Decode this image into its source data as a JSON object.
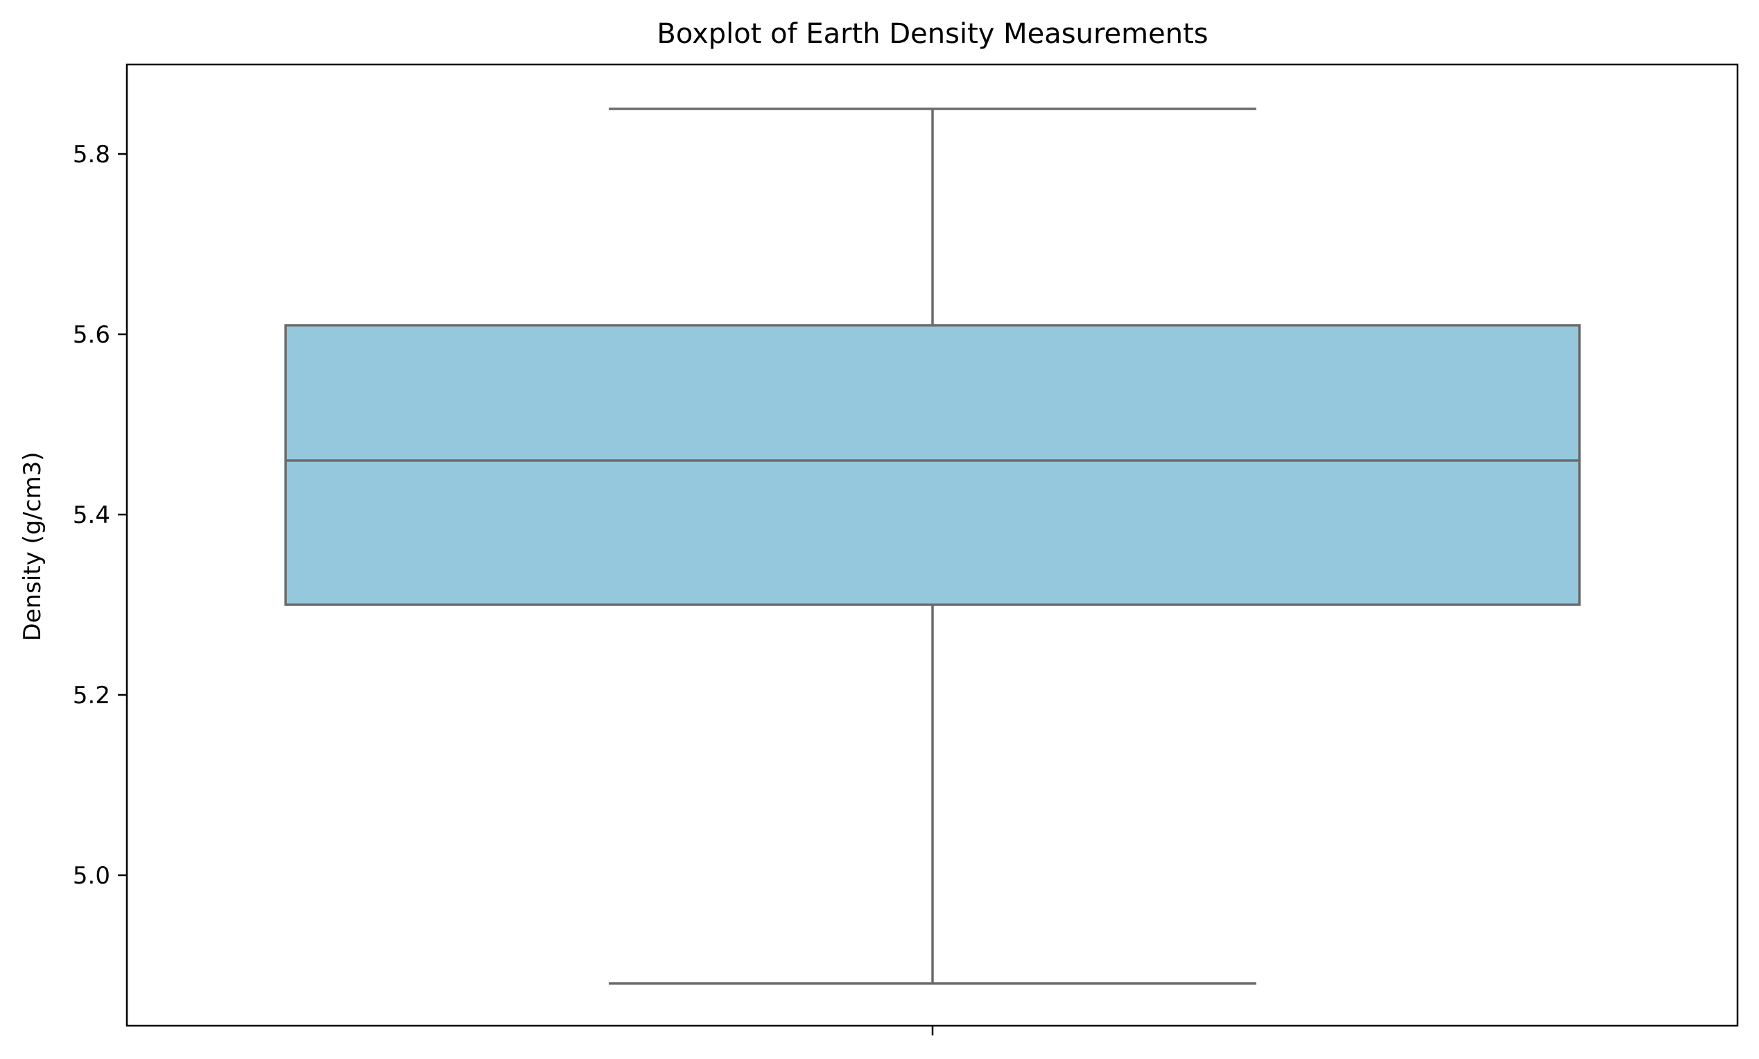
{
  "chart_data": {
    "type": "boxplot",
    "title": "Boxplot of Earth Density Measurements",
    "xlabel": "",
    "ylabel": "Density (g/cm3)",
    "ylim": [
      4.9,
      5.9
    ],
    "yticks": [
      "5.0",
      "5.2",
      "5.4",
      "5.6",
      "5.8"
    ],
    "ytick_values": [
      5.0,
      5.2,
      5.4,
      5.6,
      5.8
    ],
    "grid": false,
    "legend": "none",
    "boxes": [
      {
        "whisker_low": 4.88,
        "q1": 5.3,
        "median": 5.46,
        "q3": 5.61,
        "whisker_high": 5.85,
        "fill_color": "#95c8dc",
        "line_color": "#6b6b6b"
      }
    ]
  }
}
